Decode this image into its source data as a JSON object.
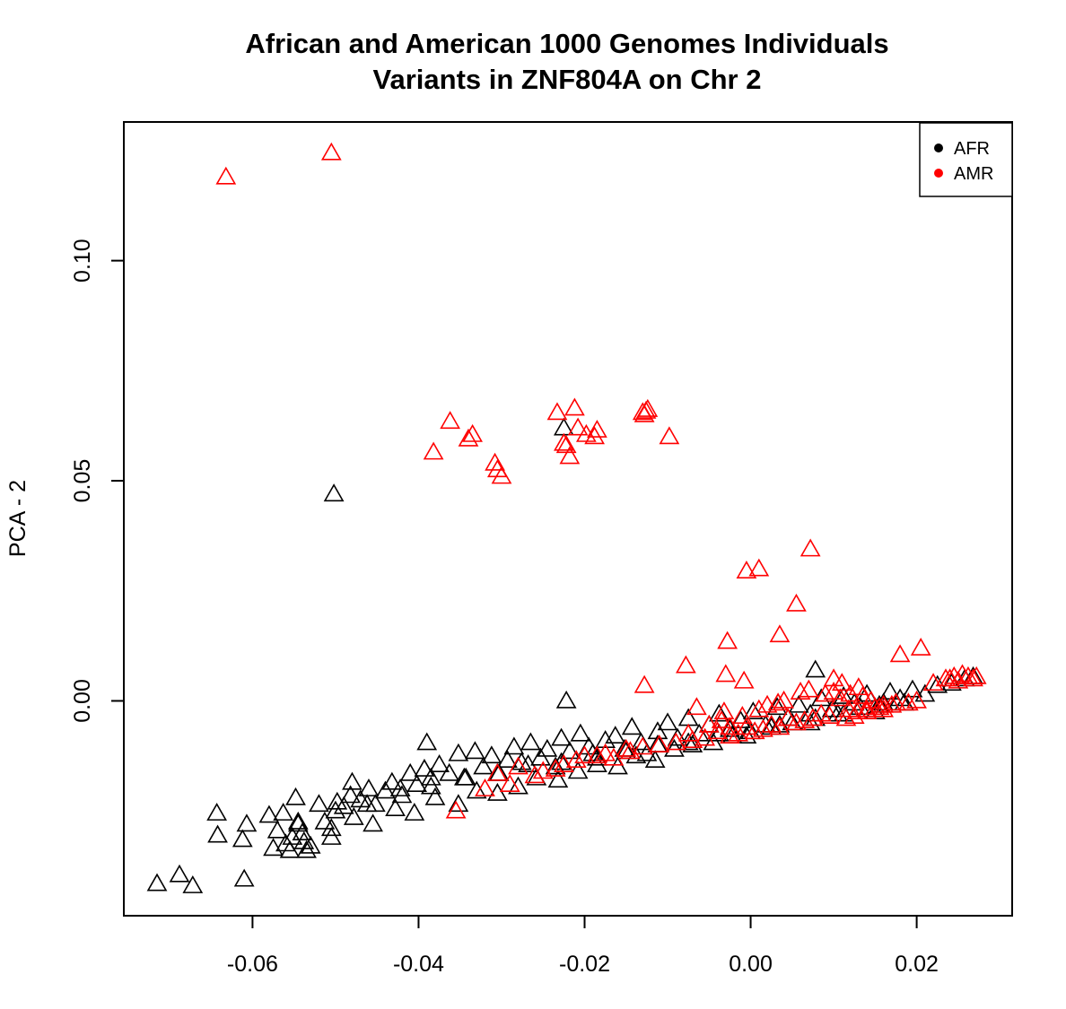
{
  "chart_data": {
    "type": "scatter",
    "title": "African and American 1000 Genomes Individuals",
    "subtitle": "Variants in ZNF804A on Chr 2",
    "xlabel": "",
    "ylabel": "PCA - 2",
    "xlim": [
      -0.0755,
      0.0315
    ],
    "ylim": [
      -0.0488,
      0.1315
    ],
    "x_ticks": [
      -0.06,
      -0.04,
      -0.02,
      0.0,
      0.02
    ],
    "x_tick_labels": [
      "-0.06",
      "-0.04",
      "-0.02",
      "0.00",
      "0.02"
    ],
    "y_ticks": [
      0.0,
      0.05,
      0.1
    ],
    "y_tick_labels": [
      "0.00",
      "0.05",
      "0.10"
    ],
    "marker": "open-triangle",
    "grid": false,
    "legend": {
      "position": "top-right",
      "entries": [
        "AFR",
        "AMR"
      ]
    },
    "series": [
      {
        "name": "AFR",
        "color": "#000000",
        "x": [
          -0.0715,
          -0.0688,
          -0.0672,
          -0.0643,
          -0.0642,
          -0.061,
          -0.0607,
          -0.0612,
          -0.057,
          -0.0563,
          -0.056,
          -0.0575,
          -0.0548,
          -0.0552,
          -0.0545,
          -0.0538,
          -0.0535,
          -0.052,
          -0.0513,
          -0.0505,
          -0.0498,
          -0.049,
          -0.0482,
          -0.047,
          -0.046,
          -0.0452,
          -0.044,
          -0.0432,
          -0.042,
          -0.041,
          -0.0402,
          -0.0393,
          -0.0385,
          -0.0375,
          -0.0363,
          -0.0352,
          -0.0343,
          -0.0332,
          -0.0322,
          -0.0312,
          -0.0303,
          -0.0293,
          -0.0285,
          -0.0276,
          -0.0265,
          -0.0253,
          -0.0245,
          -0.0235,
          -0.0228,
          -0.0218,
          -0.0205,
          -0.0195,
          -0.0185,
          -0.0175,
          -0.0163,
          -0.0152,
          -0.0143,
          -0.0132,
          -0.0125,
          -0.0112,
          -0.01,
          -0.0088,
          -0.0075,
          -0.0062,
          -0.005,
          -0.0038,
          -0.0025,
          -0.0012,
          0.0003,
          0.0018,
          0.0032,
          0.0045,
          0.0058,
          0.0072,
          0.0085,
          0.0098,
          0.0112,
          0.0125,
          0.014,
          0.0155,
          0.0168,
          0.018,
          0.0195,
          0.021,
          0.0225,
          0.0242,
          0.0258,
          0.0268,
          -0.0555,
          -0.053,
          -0.0505,
          -0.0478,
          -0.0455,
          -0.0428,
          -0.0405,
          -0.038,
          -0.0352,
          -0.033,
          -0.0305,
          -0.028,
          -0.0258,
          -0.0232,
          -0.0208,
          -0.0185,
          -0.016,
          -0.0138,
          -0.0115,
          -0.0092,
          -0.007,
          -0.0045,
          -0.0022,
          0.0,
          0.0025,
          0.005,
          0.0078,
          0.0105,
          0.0132,
          0.016,
          -0.0545,
          -0.05,
          -0.0462,
          -0.0422,
          -0.0385,
          -0.0345,
          -0.0305,
          -0.0268,
          -0.0228,
          -0.019,
          -0.015,
          -0.0112,
          -0.0075,
          -0.0038,
          -0.0005,
          0.0035,
          0.0072,
          0.0112,
          0.015,
          0.0185,
          -0.0502,
          -0.0225,
          0.0078,
          -0.0222,
          -0.039,
          -0.048,
          -0.058,
          -0.054
        ],
        "y": [
          -0.0415,
          -0.0395,
          -0.042,
          -0.0255,
          -0.0305,
          -0.0405,
          -0.028,
          -0.0315,
          -0.0295,
          -0.0255,
          -0.0325,
          -0.0335,
          -0.022,
          -0.031,
          -0.0275,
          -0.032,
          -0.034,
          -0.0235,
          -0.0275,
          -0.031,
          -0.023,
          -0.024,
          -0.0215,
          -0.0225,
          -0.02,
          -0.0235,
          -0.0205,
          -0.0185,
          -0.0215,
          -0.0165,
          -0.019,
          -0.0155,
          -0.0175,
          -0.0145,
          -0.0165,
          -0.012,
          -0.0175,
          -0.0115,
          -0.015,
          -0.0125,
          -0.0165,
          -0.0135,
          -0.0105,
          -0.014,
          -0.0095,
          -0.013,
          -0.011,
          -0.015,
          -0.0085,
          -0.0115,
          -0.0075,
          -0.0105,
          -0.013,
          -0.009,
          -0.008,
          -0.011,
          -0.006,
          -0.0095,
          -0.012,
          -0.007,
          -0.005,
          -0.0085,
          -0.004,
          -0.0075,
          -0.0055,
          -0.003,
          -0.0065,
          -0.0045,
          -0.0025,
          -0.0055,
          -0.0015,
          -0.004,
          -0.001,
          -0.003,
          0.0005,
          -0.002,
          0.001,
          -0.0005,
          0.0015,
          -0.001,
          0.002,
          0.0005,
          0.0025,
          0.0015,
          0.0035,
          0.004,
          0.005,
          0.0055,
          -0.034,
          -0.033,
          -0.029,
          -0.0265,
          -0.028,
          -0.0245,
          -0.0255,
          -0.022,
          -0.0235,
          -0.0205,
          -0.021,
          -0.0195,
          -0.0175,
          -0.018,
          -0.016,
          -0.0145,
          -0.015,
          -0.0125,
          -0.0135,
          -0.011,
          -0.01,
          -0.0095,
          -0.008,
          -0.007,
          -0.006,
          -0.005,
          -0.004,
          -0.003,
          -0.0015,
          -0.0005,
          -0.028,
          -0.025,
          -0.0235,
          -0.02,
          -0.0195,
          -0.0175,
          -0.0165,
          -0.0145,
          -0.014,
          -0.012,
          -0.0115,
          -0.01,
          -0.0095,
          -0.0075,
          -0.008,
          -0.0055,
          -0.005,
          -0.003,
          -0.0025,
          -0.0005,
          0.047,
          0.062,
          0.007,
          0.0,
          -0.0095,
          -0.0185,
          -0.026,
          -0.03
        ]
      },
      {
        "name": "AMR",
        "color": "#ff0000",
        "x": [
          -0.0632,
          -0.0505,
          -0.0382,
          -0.0362,
          -0.034,
          -0.0335,
          -0.0308,
          -0.0305,
          -0.03,
          -0.0233,
          -0.0225,
          -0.0222,
          -0.0212,
          -0.0208,
          -0.0218,
          -0.0198,
          -0.0188,
          -0.0185,
          -0.013,
          -0.0128,
          -0.0126,
          -0.0124,
          -0.0098,
          -0.0078,
          -0.003,
          -0.0028,
          0.001,
          -0.0005,
          0.0035,
          0.0072,
          0.0055,
          -0.0032,
          0.0033,
          -0.0008,
          -0.0128,
          -0.0355,
          -0.0065,
          -0.0025,
          0.01,
          0.011,
          0.013,
          0.018,
          0.0205,
          0.022,
          0.0235,
          0.0245,
          0.0255,
          0.0262,
          0.0268,
          0.0272,
          0.025,
          0.024,
          0.0175,
          0.016,
          0.015,
          0.014,
          0.0128,
          0.0118,
          0.0108,
          0.0095,
          0.0085,
          0.0075,
          0.0065,
          0.0055,
          0.0045,
          0.0035,
          0.0025,
          0.0015,
          0.0005,
          -0.0005,
          -0.0015,
          -0.0025,
          -0.004,
          -0.0055,
          -0.007,
          -0.009,
          -0.011,
          -0.013,
          -0.015,
          -0.0175,
          -0.02,
          -0.0225,
          -0.025,
          -0.028,
          -0.0305,
          -0.032,
          -0.029,
          -0.026,
          -0.0235,
          -0.021,
          -0.0185,
          -0.0165,
          -0.0145,
          0.02,
          0.019,
          0.017,
          0.0155,
          0.0145,
          0.0135,
          0.012,
          0.01,
          0.009,
          0.007,
          0.006,
          0.004,
          0.002,
          0.001,
          -0.001,
          -0.0035,
          -0.005,
          -0.0075,
          0.016,
          0.014,
          0.0125,
          0.0115
        ],
        "y": [
          0.119,
          0.1245,
          0.0565,
          0.0635,
          0.0595,
          0.0605,
          0.054,
          0.0525,
          0.051,
          0.0655,
          0.0585,
          0.058,
          0.0665,
          0.062,
          0.0555,
          0.0605,
          0.06,
          0.0615,
          0.0655,
          0.065,
          0.0658,
          0.0662,
          0.06,
          0.008,
          0.006,
          0.0135,
          0.03,
          0.0295,
          0.015,
          0.0345,
          0.022,
          -0.0025,
          -0.0005,
          0.0045,
          0.0035,
          -0.025,
          -0.0015,
          -0.006,
          0.005,
          0.004,
          0.003,
          0.0105,
          0.012,
          0.004,
          0.005,
          0.0055,
          0.006,
          0.0055,
          0.005,
          0.0055,
          0.0045,
          0.005,
          -0.0005,
          -0.001,
          -0.0015,
          -0.002,
          -0.0025,
          -0.002,
          0.0005,
          -0.0035,
          -0.003,
          -0.004,
          -0.0045,
          -0.005,
          -0.004,
          -0.006,
          -0.0055,
          -0.0065,
          -0.007,
          -0.006,
          -0.0075,
          -0.008,
          -0.007,
          -0.0085,
          -0.009,
          -0.0095,
          -0.01,
          -0.0105,
          -0.011,
          -0.012,
          -0.0125,
          -0.0145,
          -0.016,
          -0.015,
          -0.0165,
          -0.02,
          -0.019,
          -0.017,
          -0.0155,
          -0.0135,
          -0.0125,
          -0.013,
          -0.0115,
          0.0,
          -0.0005,
          -0.001,
          -0.0015,
          0.0,
          0.001,
          0.0015,
          0.002,
          0.0015,
          0.0025,
          0.002,
          0.0,
          -0.001,
          -0.002,
          -0.0035,
          -0.0045,
          -0.0055,
          -0.0075,
          -0.002,
          -0.0025,
          -0.0035,
          -0.004
        ]
      }
    ]
  }
}
